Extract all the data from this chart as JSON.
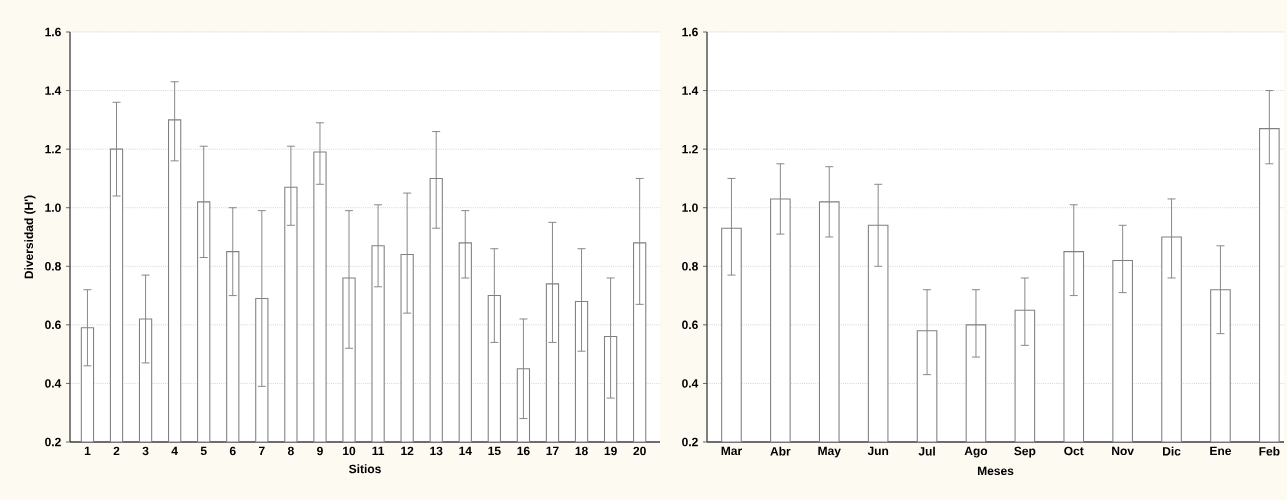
{
  "chart_data": [
    {
      "type": "bar",
      "xlabel": "Sitios",
      "ylabel": "Diversidad (H')",
      "categories": [
        "1",
        "2",
        "3",
        "4",
        "5",
        "6",
        "7",
        "8",
        "9",
        "10",
        "11",
        "12",
        "13",
        "14",
        "15",
        "16",
        "17",
        "18",
        "19",
        "20"
      ],
      "values": [
        0.59,
        1.2,
        0.62,
        1.3,
        1.02,
        0.85,
        0.69,
        1.07,
        1.19,
        0.76,
        0.87,
        0.84,
        1.1,
        0.88,
        0.7,
        0.45,
        0.74,
        0.68,
        0.56,
        0.88
      ],
      "errors": [
        [
          0.46,
          0.72
        ],
        [
          1.04,
          1.36
        ],
        [
          0.47,
          0.77
        ],
        [
          1.16,
          1.43
        ],
        [
          0.83,
          1.21
        ],
        [
          0.7,
          1.0
        ],
        [
          0.39,
          0.99
        ],
        [
          0.94,
          1.21
        ],
        [
          1.08,
          1.29
        ],
        [
          0.52,
          0.99
        ],
        [
          0.73,
          1.01
        ],
        [
          0.64,
          1.05
        ],
        [
          0.93,
          1.26
        ],
        [
          0.76,
          0.99
        ],
        [
          0.54,
          0.86
        ],
        [
          0.28,
          0.62
        ],
        [
          0.54,
          0.95
        ],
        [
          0.51,
          0.86
        ],
        [
          0.35,
          0.76
        ],
        [
          0.67,
          1.1
        ]
      ],
      "color": "#ffffff",
      "ylim": [
        0.2,
        1.6
      ],
      "yticks": [
        0.2,
        0.4,
        0.6,
        0.8,
        {
          "value": 1,
          "label": "1.0"
        },
        1.2,
        1.4,
        1.6
      ],
      "grid": "y"
    },
    {
      "type": "bar",
      "xlabel": "Meses",
      "categories": [
        "Mar",
        "Abr",
        "May",
        "Jun",
        "Jul",
        "Ago",
        "Sep",
        "Oct",
        "Nov",
        "Dic",
        "Ene",
        "Feb"
      ],
      "values": [
        0.93,
        1.03,
        1.02,
        0.94,
        0.58,
        0.6,
        0.65,
        0.85,
        0.82,
        0.9,
        0.72,
        1.27
      ],
      "errors": [
        [
          0.77,
          1.1
        ],
        [
          0.91,
          1.15
        ],
        [
          0.9,
          1.14
        ],
        [
          0.8,
          1.08
        ],
        [
          0.43,
          0.72
        ],
        [
          0.49,
          0.72
        ],
        [
          0.53,
          0.76
        ],
        [
          0.7,
          1.01
        ],
        [
          0.71,
          0.94
        ],
        [
          0.76,
          1.03
        ],
        [
          0.57,
          0.87
        ],
        [
          1.15,
          1.4
        ]
      ],
      "color": "#ffffff",
      "ylim": [
        0.2,
        1.6
      ],
      "yticks": [
        0.2,
        0.4,
        0.6,
        0.8,
        {
          "value": 1,
          "label": "1.0"
        },
        1.2,
        1.4,
        1.6
      ],
      "grid": "y"
    }
  ]
}
